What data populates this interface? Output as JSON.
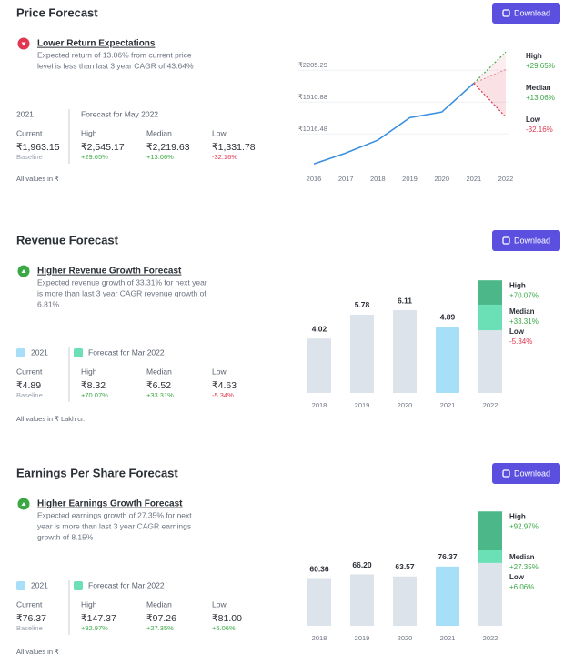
{
  "sections": [
    {
      "title": "Price Forecast",
      "button": "Download",
      "headline": "Lower Return Expectations",
      "trend": "down",
      "description": [
        "Expected return of 13.06% from current price",
        "level is less than last 3 year CAGR of 43.64%"
      ],
      "year_label": "2021",
      "forecast_label": "Forecast for May 2022",
      "current": {
        "label": "Current",
        "value": "₹1,963.15",
        "note": "Baseline"
      },
      "note": "All values in ₹",
      "chart": {
        "type": "line",
        "color": "#3b8fe0",
        "grid": true,
        "x": [
          2016,
          2017,
          2018,
          2019,
          2020,
          2021,
          2022
        ],
        "values": [
          455,
          660,
          900,
          1320,
          1425,
          1963.15,
          null
        ],
        "xlim": [
          2016,
          2022
        ],
        "xticks": [
          2016,
          2017,
          2018,
          2019,
          2020,
          2021,
          2022
        ],
        "ylim": [
          290,
          2600
        ],
        "yticks": [
          {
            "value": 1016.48,
            "label": "₹1016.48"
          },
          {
            "value": 1610.88,
            "label": "₹1610.88"
          },
          {
            "value": 2205.29,
            "label": "₹2205.29"
          }
        ],
        "forecasts": [
          {
            "name": "High",
            "value": 2545.17,
            "value_label": "₹2,545.17",
            "change": "+29.65%",
            "color": "#3aa845"
          },
          {
            "name": "Median",
            "value": 2219.63,
            "value_label": "₹2,219.63",
            "change": "+13.06%",
            "color": "#e8909c"
          },
          {
            "name": "Low",
            "value": 1331.78,
            "value_label": "₹1,331.78",
            "change": "-32.16%",
            "color": "#e0364f"
          }
        ]
      }
    },
    {
      "title": "Revenue Forecast",
      "button": "Download",
      "headline": "Higher Revenue Growth Forecast",
      "trend": "up",
      "description": [
        "Expected revenue growth of 33.31% for next year",
        "is more than last 3 year CAGR revenue growth of",
        "6.81%"
      ],
      "year_label": "2021",
      "forecast_label": "Forecast for Mar 2022",
      "current": {
        "label": "Current",
        "value": "₹4.89",
        "note": "Baseline"
      },
      "note": "All values in ₹ Lakh cr.",
      "chart": {
        "type": "bar",
        "categories": [
          2018,
          2019,
          2020,
          2021,
          2022
        ],
        "values": [
          4.02,
          5.78,
          6.11,
          4.89,
          null
        ],
        "colors": [
          "#dde3ea",
          "#dde3ea",
          "#dde3ea",
          "#a6dff7",
          "#dde3ea"
        ],
        "ylim": [
          0,
          8.6
        ],
        "forecasts": [
          {
            "name": "High",
            "value": 8.32,
            "value_label": "₹8.32",
            "change": "+70.07%",
            "color": "#4cb88a"
          },
          {
            "name": "Median",
            "value": 6.52,
            "value_label": "₹6.52",
            "change": "+33.31%",
            "color": "#6be0b7"
          },
          {
            "name": "Low",
            "value": 4.63,
            "value_label": "₹4.63",
            "change": "-5.34%",
            "color": "#dde3ea"
          }
        ]
      }
    },
    {
      "title": "Earnings Per Share Forecast",
      "button": "Download",
      "headline": "Higher Earnings Growth Forecast",
      "trend": "up",
      "description": [
        "Expected earnings growth of 27.35% for next",
        "year is more than last 3 year CAGR earnings",
        "growth of 8.15%"
      ],
      "year_label": "2021",
      "forecast_label": "Forecast for Mar 2022",
      "current": {
        "label": "Current",
        "value": "₹76.37",
        "note": "Baseline"
      },
      "note": "All values in ₹",
      "chart": {
        "type": "bar",
        "categories": [
          2018,
          2019,
          2020,
          2021,
          2022
        ],
        "values": [
          60.36,
          66.2,
          63.57,
          76.37,
          null
        ],
        "value_labels": [
          "60.36",
          "66.20",
          "63.57",
          "76.37",
          null
        ],
        "colors": [
          "#dde3ea",
          "#dde3ea",
          "#dde3ea",
          "#a6dff7",
          "#dde3ea"
        ],
        "ylim": [
          0,
          150
        ],
        "forecasts": [
          {
            "name": "High",
            "value": 147.37,
            "value_label": "₹147.37",
            "change": "+92.97%",
            "color": "#4cb88a"
          },
          {
            "name": "Median",
            "value": 97.26,
            "value_label": "₹97.26",
            "change": "+27.35%",
            "color": "#6be0b7"
          },
          {
            "name": "Low",
            "value": 81.0,
            "value_label": "₹81.00",
            "change": "+6.06%",
            "color": "#dde3ea"
          }
        ]
      }
    }
  ]
}
